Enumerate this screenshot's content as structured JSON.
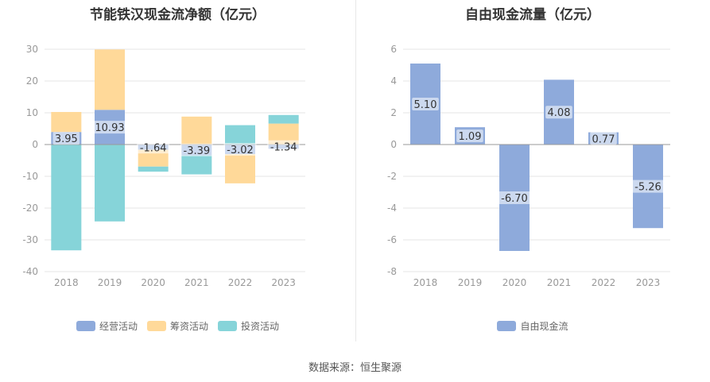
{
  "source": "数据来源：恒生聚源",
  "chart_data": [
    {
      "type": "bar",
      "stacked": true,
      "title": "节能铁汉现金流净额（亿元）",
      "categories": [
        "2018",
        "2019",
        "2020",
        "2021",
        "2022",
        "2023"
      ],
      "ylim": [
        -40,
        30
      ],
      "yticks": [
        30,
        20,
        10,
        0,
        -10,
        -20,
        -30,
        -40
      ],
      "legend_position": "bottom",
      "series": [
        {
          "name": "经营活动",
          "color": "#8eaadb",
          "values": [
            3.95,
            10.93,
            -1.64,
            -3.39,
            -3.02,
            -1.34
          ],
          "labels": [
            "3.95",
            "10.93",
            "-1.64",
            "-3.39",
            "-3.02",
            "-1.34"
          ]
        },
        {
          "name": "筹资活动",
          "color": "#ffd999",
          "values": [
            6.3,
            19.0,
            -5.3,
            8.8,
            -9.2,
            6.6
          ]
        },
        {
          "name": "投资活动",
          "color": "#86d4d9",
          "values": [
            -33.3,
            -24.2,
            -1.6,
            -6.0,
            6.1,
            2.7
          ]
        }
      ]
    },
    {
      "type": "bar",
      "title": "自由现金流量（亿元）",
      "categories": [
        "2018",
        "2019",
        "2020",
        "2021",
        "2022",
        "2023"
      ],
      "ylim": [
        -8,
        6
      ],
      "yticks": [
        6,
        4,
        2,
        0,
        -2,
        -4,
        -6,
        -8
      ],
      "legend_position": "bottom",
      "series": [
        {
          "name": "自由现金流",
          "color": "#8eaadb",
          "values": [
            5.1,
            1.09,
            -6.7,
            4.08,
            0.77,
            -5.26
          ],
          "labels": [
            "5.10",
            "1.09",
            "-6.70",
            "4.08",
            "0.77",
            "-5.26"
          ]
        }
      ]
    }
  ]
}
